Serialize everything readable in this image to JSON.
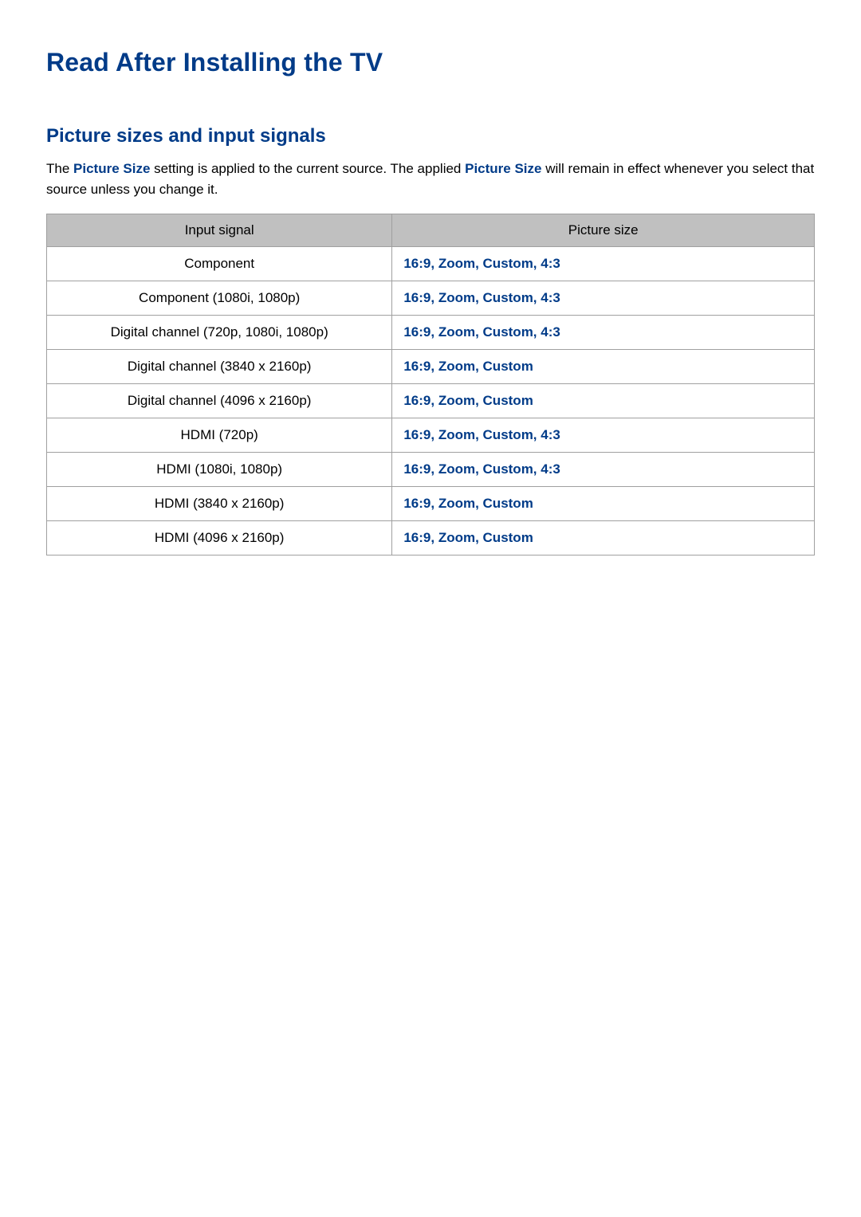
{
  "colors": {
    "accent": "#003b88",
    "header_bg": "#c0c0c0",
    "border": "#a0a0a0",
    "text": "#000000",
    "background": "#ffffff"
  },
  "typography": {
    "title_fontsize": 32,
    "subtitle_fontsize": 24,
    "body_fontsize": 17
  },
  "title": "Read After Installing the TV",
  "section": {
    "heading": "Picture sizes and input signals",
    "desc_parts": {
      "pre": "The ",
      "accent1": "Picture Size",
      "mid1": " setting is applied to the current source. The applied ",
      "accent2": "Picture Size",
      "mid2": " will remain in effect whenever you select that source unless you change it."
    }
  },
  "table": {
    "columns": [
      "Input signal",
      "Picture size"
    ],
    "col_widths_pct": [
      45,
      55
    ],
    "rows": [
      {
        "signal": "Component",
        "size": "16:9, Zoom, Custom, 4:3"
      },
      {
        "signal": "Component (1080i, 1080p)",
        "size": "16:9, Zoom, Custom, 4:3"
      },
      {
        "signal": "Digital channel (720p, 1080i, 1080p)",
        "size": "16:9, Zoom, Custom, 4:3"
      },
      {
        "signal": "Digital channel (3840 x 2160p)",
        "size": "16:9, Zoom, Custom"
      },
      {
        "signal": "Digital channel (4096 x 2160p)",
        "size": "16:9, Zoom, Custom"
      },
      {
        "signal": "HDMI (720p)",
        "size": "16:9, Zoom, Custom, 4:3"
      },
      {
        "signal": "HDMI (1080i, 1080p)",
        "size": "16:9, Zoom, Custom, 4:3"
      },
      {
        "signal": "HDMI (3840 x 2160p)",
        "size": "16:9, Zoom, Custom"
      },
      {
        "signal": "HDMI (4096 x 2160p)",
        "size": "16:9, Zoom, Custom"
      }
    ]
  }
}
